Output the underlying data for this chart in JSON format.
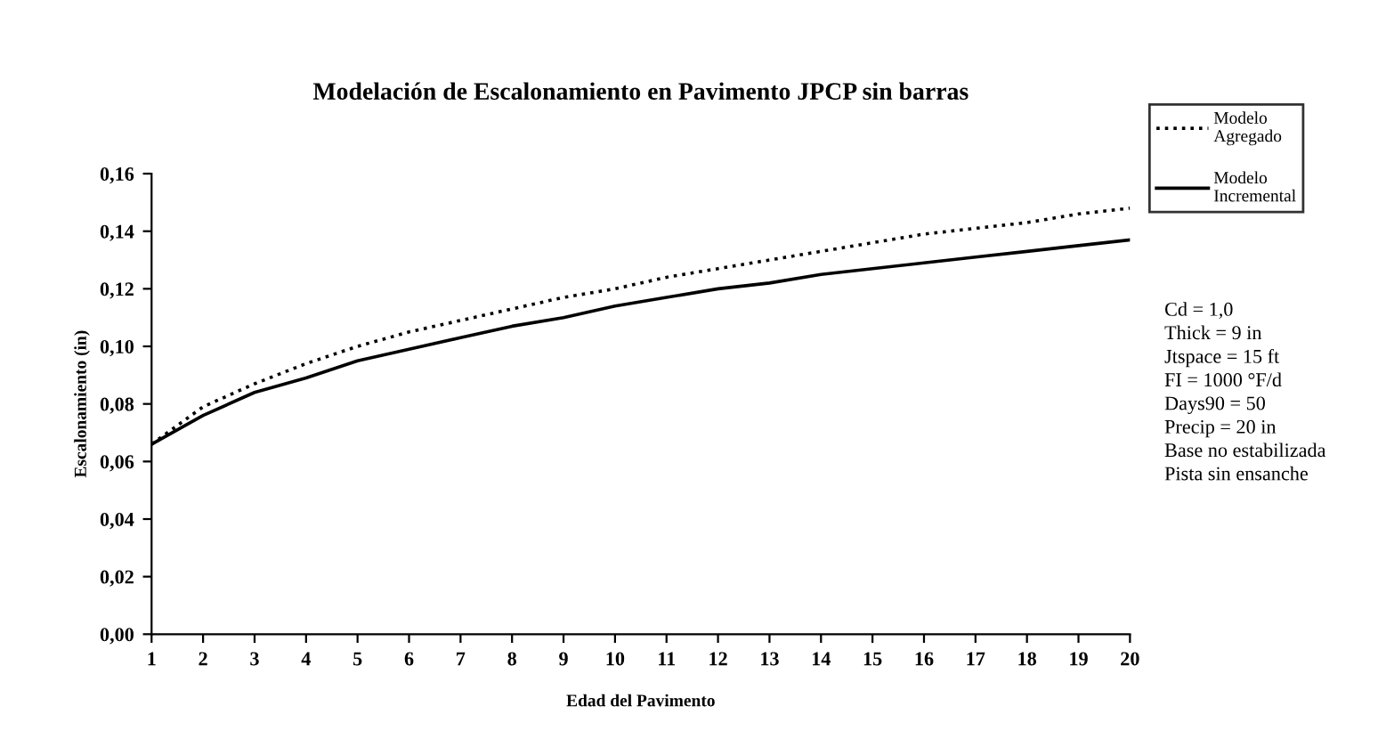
{
  "chart_data": {
    "type": "line",
    "title": "Modelación de Escalonamiento en Pavimento JPCP sin barras",
    "xlabel": "Edad del Pavimento",
    "ylabel": "Escalonamiento (in)",
    "x": [
      1,
      2,
      3,
      4,
      5,
      6,
      7,
      8,
      9,
      10,
      11,
      12,
      13,
      14,
      15,
      16,
      17,
      18,
      19,
      20
    ],
    "series": [
      {
        "name": "Modelo\nAgregado",
        "color": "#000000",
        "line_style": "dotted",
        "values": [
          0.066,
          0.079,
          0.087,
          0.094,
          0.1,
          0.105,
          0.109,
          0.113,
          0.117,
          0.12,
          0.124,
          0.127,
          0.13,
          0.133,
          0.136,
          0.139,
          0.141,
          0.143,
          0.146,
          0.148
        ]
      },
      {
        "name": "Modelo\nIncremental",
        "color": "#000000",
        "line_style": "solid",
        "values": [
          0.066,
          0.076,
          0.084,
          0.089,
          0.095,
          0.099,
          0.103,
          0.107,
          0.11,
          0.114,
          0.117,
          0.12,
          0.122,
          0.125,
          0.127,
          0.129,
          0.131,
          0.133,
          0.135,
          0.137
        ]
      }
    ],
    "xlim": [
      1,
      20
    ],
    "xticks": [
      1,
      2,
      3,
      4,
      5,
      6,
      7,
      8,
      9,
      10,
      11,
      12,
      13,
      14,
      15,
      16,
      17,
      18,
      19,
      20
    ],
    "ylim": [
      0,
      0.16
    ],
    "yticks": [
      {
        "value": 0,
        "label": "0,00"
      },
      {
        "value": 0.02,
        "label": "0,02"
      },
      {
        "value": 0.04,
        "label": "0,04"
      },
      {
        "value": 0.06,
        "label": "0,06"
      },
      {
        "value": 0.08,
        "label": "0,08"
      },
      {
        "value": 0.1,
        "label": "0,10"
      },
      {
        "value": 0.12,
        "label": "0,12"
      },
      {
        "value": 0.14,
        "label": "0,14"
      },
      {
        "value": 0.16,
        "label": "0,16"
      }
    ],
    "grid": false,
    "legend": "right",
    "marker": "none",
    "annotations": [
      "Cd = 1,0\nThick = 9 in\nJtspace = 15 ft\nFI = 1000 °F/d\nDays90 = 50\nPrecip = 20 in\nBase no estabilizada\nPista sin ensanche"
    ]
  }
}
